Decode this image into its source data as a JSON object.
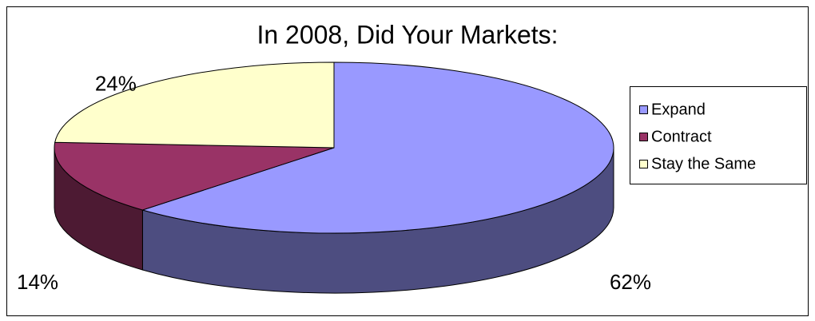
{
  "chart_data": {
    "type": "pie",
    "title": "In 2008, Did Your Markets:",
    "categories": [
      "Expand",
      "Contract",
      "Stay the Same"
    ],
    "values": [
      62,
      14,
      24
    ],
    "value_labels": [
      "62%",
      "14%",
      "24%"
    ],
    "colors": [
      "#9999ff",
      "#993366",
      "#ffffcc"
    ],
    "legend": "right"
  }
}
